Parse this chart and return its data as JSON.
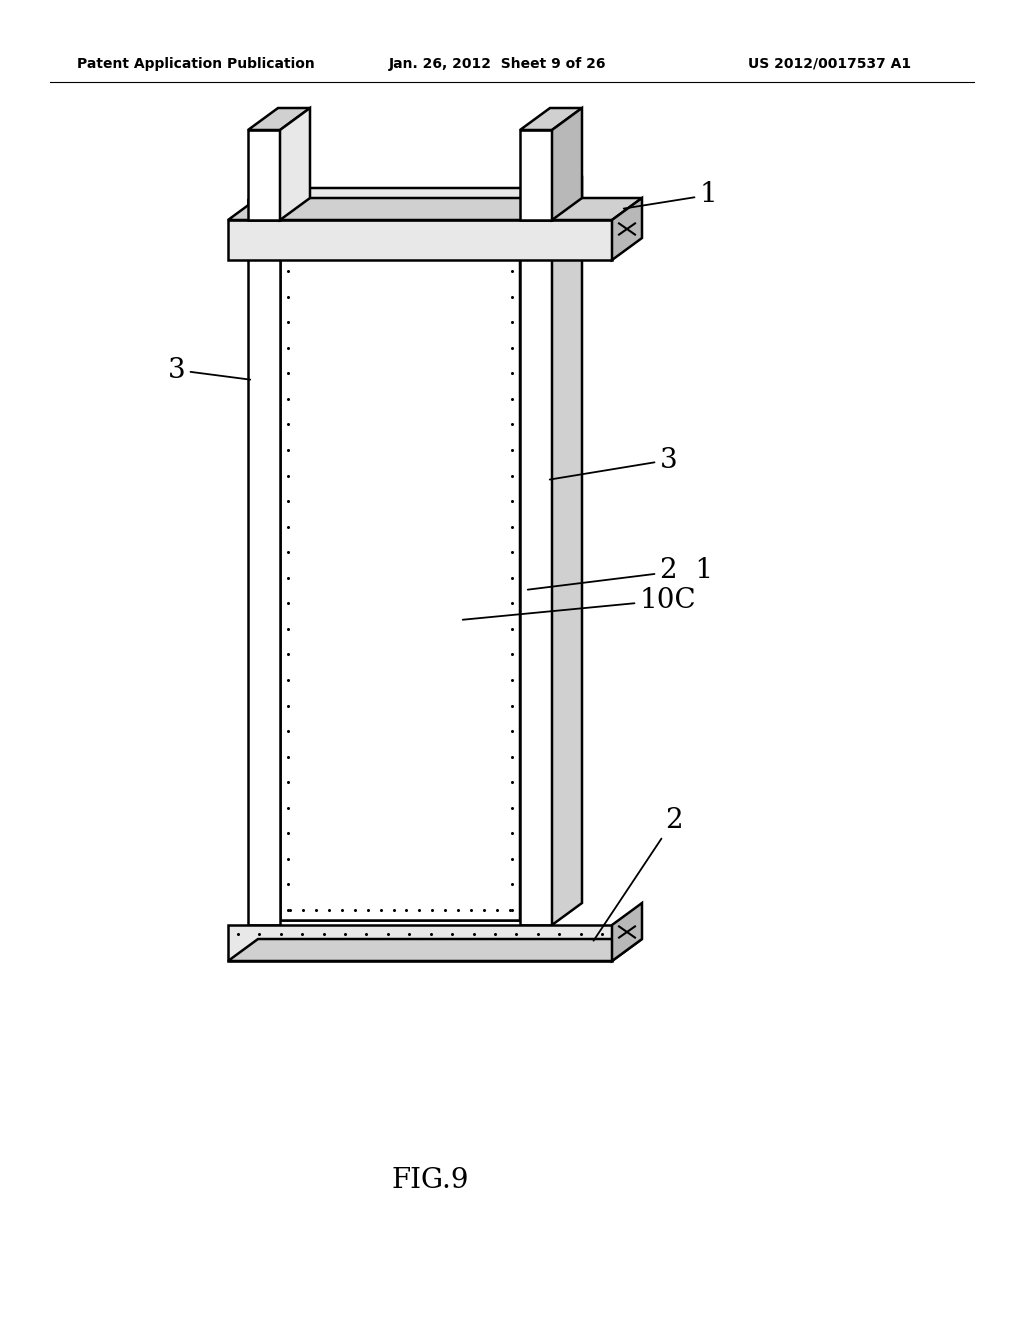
{
  "fig_label": "FIG.9",
  "header_left": "Patent Application Publication",
  "header_center": "Jan. 26, 2012  Sheet 9 of 26",
  "header_right": "US 2012/0017537 A1",
  "background_color": "#ffffff",
  "line_color": "#000000",
  "face_white": "#ffffff",
  "face_light": "#e8e8e8",
  "face_mid": "#d0d0d0",
  "face_dark": "#b8b8b8"
}
